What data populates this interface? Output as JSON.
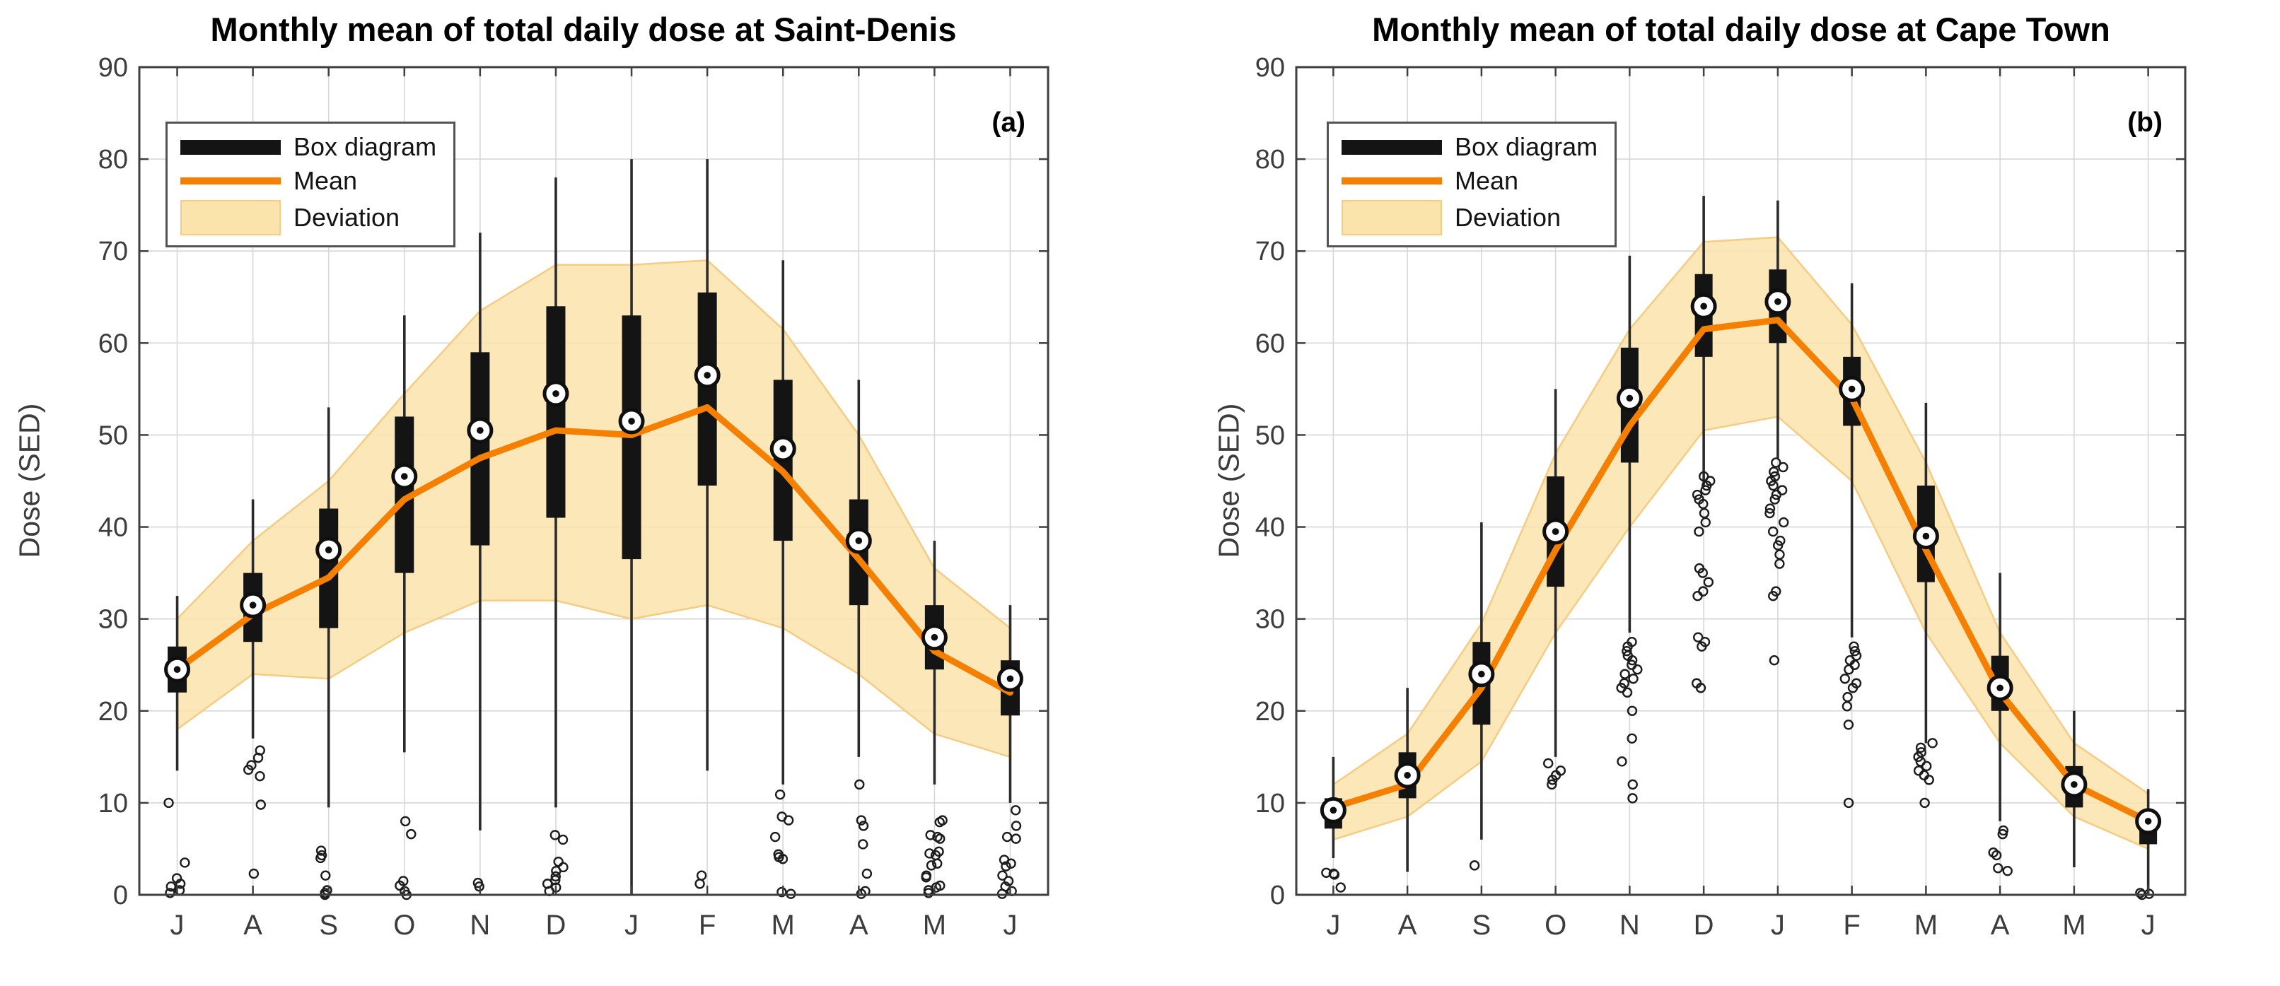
{
  "figure": {
    "background": "#ffffff"
  },
  "colors": {
    "mean_line": "#F57F00",
    "band_fill": "#FBE3AC",
    "band_edge": "#F5CC84",
    "box": "#141414",
    "whisker": "#2B2B2B",
    "outlier": "#1C1C1C",
    "grid": "#D7D7D7",
    "axis": "#3F3F3F",
    "marker_ring": "#0F0F0F",
    "marker_fill": "#FFFFFF"
  },
  "legend": {
    "items": [
      {
        "label": "Box diagram",
        "swatch": "box"
      },
      {
        "label": "Mean",
        "swatch": "line"
      },
      {
        "label": "Deviation",
        "swatch": "patch"
      }
    ]
  },
  "chart_data": [
    {
      "type": "box+line+area",
      "title": "Monthly mean of total daily dose at Saint-Denis",
      "panel_label": "(a)",
      "ylabel": "Dose (SED)",
      "ylim": [
        0,
        90
      ],
      "yticks": [
        0,
        10,
        20,
        30,
        40,
        50,
        60,
        70,
        80,
        90
      ],
      "grid": true,
      "legend_position": "top-left",
      "categories": [
        "J",
        "A",
        "S",
        "O",
        "N",
        "D",
        "J",
        "F",
        "M",
        "A",
        "M",
        "J"
      ],
      "series": {
        "mean": [
          24.5,
          30.5,
          34.5,
          43,
          47.5,
          50.5,
          50,
          53,
          46,
          36.5,
          26.5,
          22
        ],
        "median": [
          24.5,
          31.5,
          37.5,
          45.5,
          50.5,
          54.5,
          51.5,
          56.5,
          48.5,
          38.5,
          28,
          23.5
        ],
        "q1": [
          22,
          27.5,
          29,
          35,
          38,
          41,
          36.5,
          44.5,
          38.5,
          31.5,
          24.5,
          19.5
        ],
        "q3": [
          27,
          35,
          42,
          52,
          59,
          64,
          63,
          65.5,
          56,
          43,
          31.5,
          25.5
        ],
        "whisker_low": [
          13.5,
          17,
          9.5,
          15.5,
          7,
          9.5,
          0,
          13.5,
          12,
          15,
          12,
          10
        ],
        "whisker_high": [
          32.5,
          43,
          53,
          63,
          72,
          78,
          80,
          80,
          69,
          56,
          38.5,
          31.5
        ],
        "deviation_low": [
          18,
          24,
          23.5,
          28.5,
          32,
          32,
          30,
          31.5,
          29,
          24,
          17.5,
          15
        ],
        "deviation_high": [
          30,
          38.5,
          45,
          54.5,
          63.5,
          68.5,
          68.5,
          69,
          61.5,
          50,
          35.5,
          29
        ],
        "outliers": [
          [
            10,
            3.5,
            1.8,
            1.2,
            0.9,
            0.5,
            0.2
          ],
          [
            15.7,
            14.9,
            14.1,
            13.6,
            12.9,
            9.8,
            2.3
          ],
          [
            4.8,
            4.3,
            4,
            2.1,
            0.5,
            0.2,
            0
          ],
          [
            8,
            6.6,
            1.5,
            1,
            0.4,
            0
          ],
          [
            1.3,
            0.9
          ],
          [
            6.5,
            6,
            3.6,
            3,
            2.6,
            2,
            1.6,
            1.2,
            0.8,
            0.4
          ],
          [],
          [
            2.1,
            1.2
          ],
          [
            10.9,
            8.5,
            8.1,
            6.3,
            4.4,
            4.1,
            3.9,
            0.3,
            0.1
          ],
          [
            12,
            8.1,
            7.5,
            5.5,
            2.3,
            0.4,
            0.1
          ],
          [
            8.1,
            7.9,
            6.5,
            6.3,
            6.1,
            4.7,
            4.5,
            4.3,
            3.4,
            3.2,
            2.1,
            1.9,
            1,
            0.8,
            0.5,
            0.2
          ],
          [
            9.2,
            7.5,
            6.3,
            6.1,
            3.8,
            3.4,
            3.1,
            2.1,
            1.5,
            0.9,
            0.4,
            0.1
          ]
        ]
      }
    },
    {
      "type": "box+line+area",
      "title": "Monthly mean of total daily dose at Cape Town",
      "panel_label": "(b)",
      "ylabel": "Dose (SED)",
      "ylim": [
        0,
        90
      ],
      "yticks": [
        0,
        10,
        20,
        30,
        40,
        50,
        60,
        70,
        80,
        90
      ],
      "grid": true,
      "legend_position": "top-left",
      "categories": [
        "J",
        "A",
        "S",
        "O",
        "N",
        "D",
        "J",
        "F",
        "M",
        "A",
        "M",
        "J"
      ],
      "series": {
        "mean": [
          9.5,
          12,
          22.5,
          37.5,
          51,
          61.5,
          62.5,
          54,
          37.5,
          22,
          12,
          8
        ],
        "median": [
          9.2,
          13,
          24,
          39.5,
          54,
          64,
          64.5,
          55,
          39,
          22.5,
          12,
          8
        ],
        "q1": [
          7.2,
          10.5,
          18.5,
          33.5,
          47,
          58.5,
          60,
          51,
          34,
          20,
          9.5,
          5.5
        ],
        "q3": [
          10.5,
          15.5,
          27.5,
          45.5,
          59.5,
          67.5,
          68,
          58.5,
          44.5,
          26,
          14,
          9
        ],
        "whisker_low": [
          4,
          2.5,
          6,
          15,
          28.5,
          44.5,
          47.5,
          28,
          16.5,
          8,
          3,
          0
        ],
        "whisker_high": [
          15,
          22.5,
          40.5,
          55,
          69.5,
          76,
          75.5,
          66.5,
          53.5,
          35,
          20,
          11.5
        ],
        "deviation_low": [
          6,
          8.5,
          14.5,
          28.5,
          40,
          50.5,
          52,
          45,
          28.5,
          16.5,
          8.5,
          5
        ],
        "deviation_high": [
          12,
          17.5,
          29.5,
          48,
          61.5,
          71,
          71.5,
          62,
          47,
          28.5,
          16.5,
          11
        ],
        "outliers": [
          [
            2.4,
            2.3,
            2.2,
            0.8
          ],
          [],
          [
            3.2
          ],
          [
            14.3,
            13.5,
            13,
            12.5,
            12
          ],
          [
            27.5,
            27,
            26.5,
            26,
            25.5,
            25,
            24.5,
            24,
            23.5,
            23,
            22.5,
            22,
            20,
            17,
            14.5,
            12,
            10.5
          ],
          [
            45.5,
            45,
            44.5,
            44,
            43.5,
            43,
            42.5,
            41.5,
            40.5,
            39.5,
            35.5,
            35,
            34,
            33,
            32.5,
            28,
            27.5,
            27,
            23,
            22.5
          ],
          [
            47,
            46.5,
            46,
            45.5,
            45,
            44.5,
            44,
            43.5,
            43,
            42,
            41.5,
            40.5,
            39.5,
            38.5,
            38,
            37,
            36,
            33,
            32.5,
            25.5
          ],
          [
            27,
            26.5,
            26,
            25.5,
            25,
            24.5,
            23.5,
            23,
            22.5,
            21.5,
            20.5,
            18.5,
            10
          ],
          [
            16.5,
            16,
            15.5,
            15,
            14.5,
            14,
            13.5,
            13,
            12.5,
            10
          ],
          [
            7,
            6.6,
            4.6,
            4.3,
            2.9,
            2.6
          ],
          [],
          [
            0.2,
            0.1,
            0
          ]
        ]
      }
    }
  ]
}
